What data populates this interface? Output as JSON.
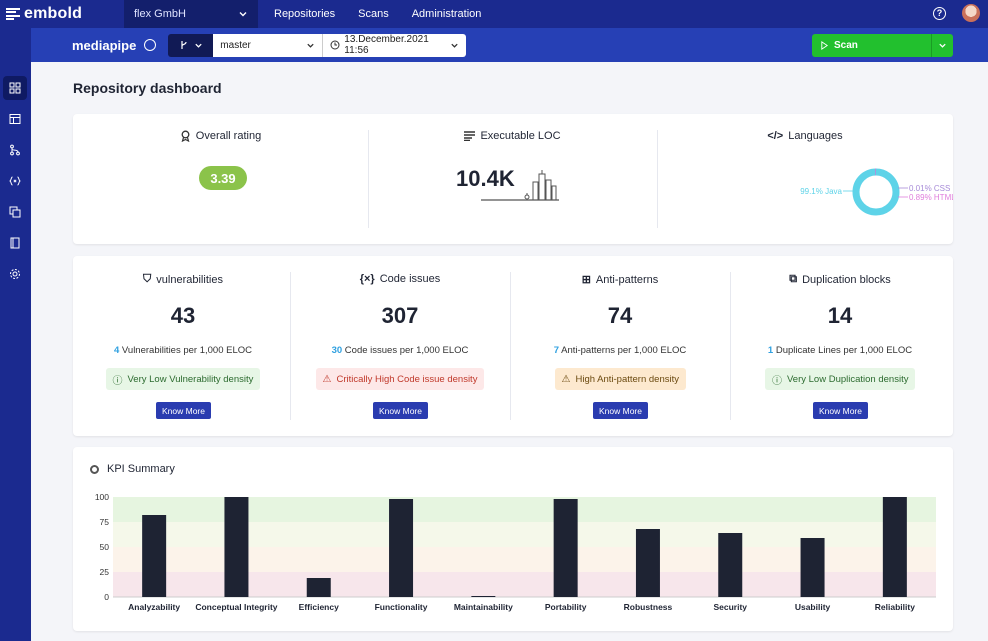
{
  "topbar": {
    "brand": "embold",
    "org": "flex GmbH",
    "nav": [
      "Repositories",
      "Scans",
      "Administration"
    ],
    "help_icon": "?"
  },
  "subbar": {
    "repo": "mediapipe",
    "branch": "master",
    "date": "13.December.2021 11:56",
    "scan_label": "Scan"
  },
  "sidebar": {
    "icons": [
      "dashboard-icon",
      "table-icon",
      "git-icon",
      "code-icon",
      "duplicate-icon",
      "book-icon",
      "settings-icon"
    ]
  },
  "page": {
    "title": "Repository dashboard"
  },
  "overview": {
    "rating": {
      "title": "Overall rating",
      "value": "3.39",
      "color": "#8bc34a"
    },
    "loc": {
      "title": "Executable LOC",
      "value": "10.4K"
    },
    "languages": {
      "title": "Languages",
      "items": [
        {
          "label": "99.1% Java",
          "percent": 99.1,
          "color": "#5ed3e8"
        },
        {
          "label": "0.01% CSS",
          "percent": 0.01,
          "color": "#a78bd8"
        },
        {
          "label": "0.89% HTML",
          "percent": 0.89,
          "color": "#e07fdc"
        }
      ]
    }
  },
  "metrics": [
    {
      "icon": "shield-icon",
      "glyph": "⛉",
      "title": "vulnerabilities",
      "value": "43",
      "rate": "4",
      "rate_text": " Vulnerabilities per 1,000 ELOC",
      "badge": "Very Low Vulnerability density",
      "badge_type": "green",
      "badge_icon": "ⓘ",
      "button": "Know More"
    },
    {
      "icon": "code-icon",
      "glyph": "{×}",
      "title": "Code issues",
      "value": "307",
      "rate": "30",
      "rate_text": " Code issues per 1,000 ELOC",
      "badge": "Critically High Code issue density",
      "badge_type": "red",
      "badge_icon": "⚠",
      "button": "Know More"
    },
    {
      "icon": "grid-icon",
      "glyph": "⊞",
      "title": "Anti-patterns",
      "value": "74",
      "rate": "7",
      "rate_text": " Anti-patterns per 1,000 ELOC",
      "badge": "High Anti-pattern density",
      "badge_type": "orange",
      "badge_icon": "⚠",
      "button": "Know More"
    },
    {
      "icon": "copy-icon",
      "glyph": "⧉",
      "title": "Duplication blocks",
      "value": "14",
      "rate": "1",
      "rate_text": " Duplicate Lines per 1,000 ELOC",
      "badge": "Very Low Duplication density",
      "badge_type": "green",
      "badge_icon": "ⓘ",
      "button": "Know More"
    }
  ],
  "kpi": {
    "title": "KPI Summary"
  },
  "chart_data": {
    "type": "bar",
    "categories": [
      "Analyzability",
      "Conceptual Integrity",
      "Efficiency",
      "Functionality",
      "Maintainability",
      "Portability",
      "Robustness",
      "Security",
      "Usability",
      "Reliability"
    ],
    "values": [
      82,
      100,
      19,
      98,
      1,
      98,
      68,
      64,
      59,
      100
    ],
    "ylim": [
      0,
      100
    ],
    "yticks": [
      0,
      25,
      50,
      75,
      100
    ],
    "bands": [
      {
        "from": 75,
        "to": 100,
        "color": "#e6f5e0"
      },
      {
        "from": 50,
        "to": 75,
        "color": "#f5f8ea"
      },
      {
        "from": 25,
        "to": 50,
        "color": "#fcf3ea"
      },
      {
        "from": 0,
        "to": 25,
        "color": "#f7e6eb"
      }
    ],
    "bar_color": "#1e2333"
  }
}
